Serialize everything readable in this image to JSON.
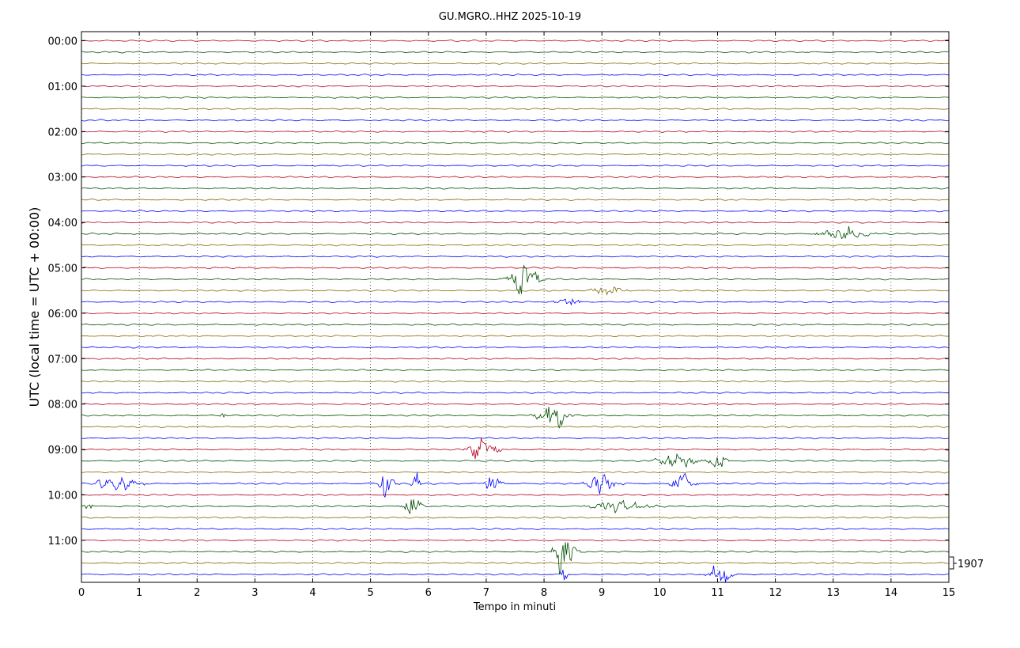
{
  "chart_data": {
    "type": "line",
    "title": "GU.MGRO..HHZ 2025-10-19",
    "xlabel": "Tempo in minuti",
    "ylabel": "UTC (local time = UTC + 00:00)",
    "xlim": [
      0,
      15
    ],
    "x_ticks": [
      "0",
      "1",
      "2",
      "3",
      "4",
      "5",
      "6",
      "7",
      "8",
      "9",
      "10",
      "11",
      "12",
      "13",
      "14",
      "15"
    ],
    "y_ticks": [
      "00:00",
      "01:00",
      "02:00",
      "03:00",
      "04:00",
      "05:00",
      "06:00",
      "07:00",
      "08:00",
      "09:00",
      "10:00",
      "11:00"
    ],
    "grid": true,
    "traces_per_hour": 4,
    "trace_count": 48,
    "trace_colors": [
      "#b2001e",
      "#004d00",
      "#7f6a00",
      "#0000ff"
    ],
    "scale_label": "1907",
    "events": [
      {
        "trace": 17,
        "minute": 13.2,
        "amp": 1.2,
        "width": 0.45
      },
      {
        "trace": 21,
        "minute": 7.65,
        "amp": 3.0,
        "width": 0.3
      },
      {
        "trace": 22,
        "minute": 9.1,
        "amp": 0.9,
        "width": 0.3
      },
      {
        "trace": 23,
        "minute": 8.4,
        "amp": 1.3,
        "width": 0.2
      },
      {
        "trace": 33,
        "minute": 2.45,
        "amp": 1.6,
        "width": 0.05
      },
      {
        "trace": 33,
        "minute": 8.15,
        "amp": 2.6,
        "width": 0.3
      },
      {
        "trace": 36,
        "minute": 6.95,
        "amp": 3.0,
        "width": 0.25
      },
      {
        "trace": 37,
        "minute": 10.3,
        "amp": 1.3,
        "width": 0.4
      },
      {
        "trace": 37,
        "minute": 11.0,
        "amp": 2.2,
        "width": 0.15
      },
      {
        "trace": 39,
        "minute": 0.35,
        "amp": 2.0,
        "width": 0.1
      },
      {
        "trace": 39,
        "minute": 0.7,
        "amp": 1.5,
        "width": 0.25
      },
      {
        "trace": 39,
        "minute": 1.05,
        "amp": 1.6,
        "width": 0.06
      },
      {
        "trace": 39,
        "minute": 5.25,
        "amp": 2.6,
        "width": 0.18
      },
      {
        "trace": 39,
        "minute": 5.8,
        "amp": 1.8,
        "width": 0.08
      },
      {
        "trace": 39,
        "minute": 7.1,
        "amp": 3.0,
        "width": 0.15
      },
      {
        "trace": 39,
        "minute": 9.0,
        "amp": 1.8,
        "width": 0.3
      },
      {
        "trace": 39,
        "minute": 10.4,
        "amp": 2.2,
        "width": 0.2
      },
      {
        "trace": 41,
        "minute": 0.15,
        "amp": 1.2,
        "width": 0.1
      },
      {
        "trace": 41,
        "minute": 5.7,
        "amp": 2.4,
        "width": 0.2
      },
      {
        "trace": 41,
        "minute": 9.3,
        "amp": 0.9,
        "width": 0.6
      },
      {
        "trace": 45,
        "minute": 8.35,
        "amp": 4.5,
        "width": 0.2
      },
      {
        "trace": 47,
        "minute": 8.35,
        "amp": 2.2,
        "width": 0.06
      },
      {
        "trace": 47,
        "minute": 11.05,
        "amp": 2.3,
        "width": 0.22
      }
    ]
  }
}
